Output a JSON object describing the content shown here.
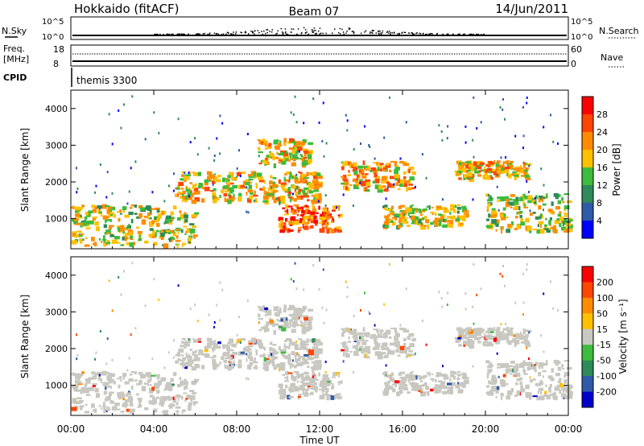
{
  "header": {
    "station": "Hokkaido (fitACF)",
    "beam": "Beam 07",
    "date": "14/Jun/2011"
  },
  "top_panels": {
    "nsky_label": "N.Sky",
    "nsearch_label": "N.Search",
    "nsky_ticks": [
      "10^5",
      "10^0"
    ],
    "nsearch_ticks": [
      "10^5",
      "10^0"
    ],
    "freq_label": "Freq.",
    "freq_unit": "[MHz]",
    "freq_ticks": [
      "18",
      "8"
    ],
    "nave_label": "Nave",
    "nave_ticks": [
      "60",
      "0"
    ],
    "cpid_label": "CPID",
    "cpid_value": "themis 3300"
  },
  "chart_data": [
    {
      "type": "heatmap",
      "name": "power",
      "ylabel": "Slant Range [km]",
      "ylim": [
        180,
        4500
      ],
      "yticks": [
        "4000",
        "3000",
        "2000",
        "1000"
      ],
      "colorbar_label": "Power [dB]",
      "colorbar_ticks": [
        "28",
        "24",
        "20",
        "16",
        "12",
        "8",
        "4"
      ],
      "colors": [
        "#0000ff",
        "#2e5aa8",
        "#2e8a58",
        "#3cbb3c",
        "#ffc000",
        "#ff8c00",
        "#ff4500",
        "#ff0000"
      ],
      "echo_bands": [
        {
          "t_start": 0.0,
          "t_end": 6.0,
          "range_low": 300,
          "range_high": 1400,
          "level": 20
        },
        {
          "t_start": 5.0,
          "t_end": 12.0,
          "range_low": 1500,
          "range_high": 2300,
          "level": 22
        },
        {
          "t_start": 9.0,
          "t_end": 11.5,
          "range_low": 2500,
          "range_high": 3200,
          "level": 22
        },
        {
          "t_start": 10.0,
          "t_end": 13.0,
          "range_low": 700,
          "range_high": 1400,
          "level": 28
        },
        {
          "t_start": 13.0,
          "t_end": 16.5,
          "range_low": 1800,
          "range_high": 2600,
          "level": 24
        },
        {
          "t_start": 15.0,
          "t_end": 19.0,
          "range_low": 800,
          "range_high": 1400,
          "level": 20
        },
        {
          "t_start": 18.5,
          "t_end": 22.0,
          "range_low": 2100,
          "range_high": 2600,
          "level": 22
        },
        {
          "t_start": 20.0,
          "t_end": 24.0,
          "range_low": 700,
          "range_high": 1700,
          "level": 20
        }
      ]
    },
    {
      "type": "heatmap",
      "name": "velocity",
      "ylabel": "Slant Range [km]",
      "ylim": [
        180,
        4500
      ],
      "yticks": [
        "4000",
        "3000",
        "2000",
        "1000"
      ],
      "xlabel": "Time UT",
      "xticks": [
        "00:00",
        "04:00",
        "08:00",
        "12:00",
        "16:00",
        "20:00",
        "00:00"
      ],
      "xlim": [
        0,
        24
      ],
      "colorbar_label": "Velocity [m s⁻¹]",
      "colorbar_ticks": [
        "200",
        "100",
        "50",
        "15",
        "-15",
        "-50",
        "-100",
        "-200"
      ],
      "colors": [
        "#0000cc",
        "#2e5aa8",
        "#2e8a58",
        "#3cbb3c",
        "#c8c8c0",
        "#ffc000",
        "#ff8c00",
        "#ff4500",
        "#ff0000"
      ],
      "ground_scatter_color": "#c8c8c0"
    }
  ]
}
